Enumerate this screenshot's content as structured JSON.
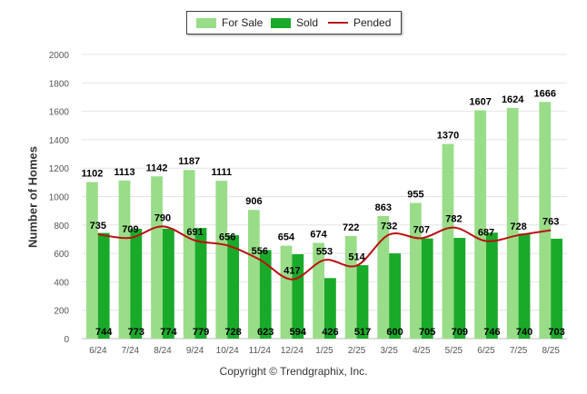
{
  "chart_data": {
    "type": "bar",
    "title": "",
    "xlabel": "",
    "ylabel": "Number of Homes",
    "ylim": [
      0,
      2000
    ],
    "yticks": [
      0,
      200,
      400,
      600,
      800,
      1000,
      1200,
      1400,
      1600,
      1800,
      2000
    ],
    "grid": true,
    "legend_position": "top-center",
    "categories": [
      "6/24",
      "7/24",
      "8/24",
      "9/24",
      "10/24",
      "11/24",
      "12/24",
      "1/25",
      "2/25",
      "3/25",
      "4/25",
      "5/25",
      "6/25",
      "7/25",
      "8/25"
    ],
    "series": [
      {
        "name": "For Sale",
        "type": "bar",
        "color": "#99dd88",
        "values": [
          1102,
          1113,
          1142,
          1187,
          1111,
          906,
          654,
          674,
          722,
          863,
          955,
          1370,
          1607,
          1624,
          1666
        ]
      },
      {
        "name": "Sold",
        "type": "bar",
        "color": "#1aaa2a",
        "values": [
          744,
          773,
          774,
          779,
          728,
          623,
          594,
          426,
          517,
          600,
          705,
          709,
          746,
          740,
          703
        ]
      },
      {
        "name": "Pended",
        "type": "line",
        "color": "#bb1111",
        "values": [
          735,
          709,
          790,
          691,
          656,
          556,
          417,
          553,
          514,
          732,
          707,
          782,
          687,
          728,
          763
        ]
      }
    ]
  },
  "footer": {
    "copyright": "Copyright © Trendgraphix, Inc."
  }
}
